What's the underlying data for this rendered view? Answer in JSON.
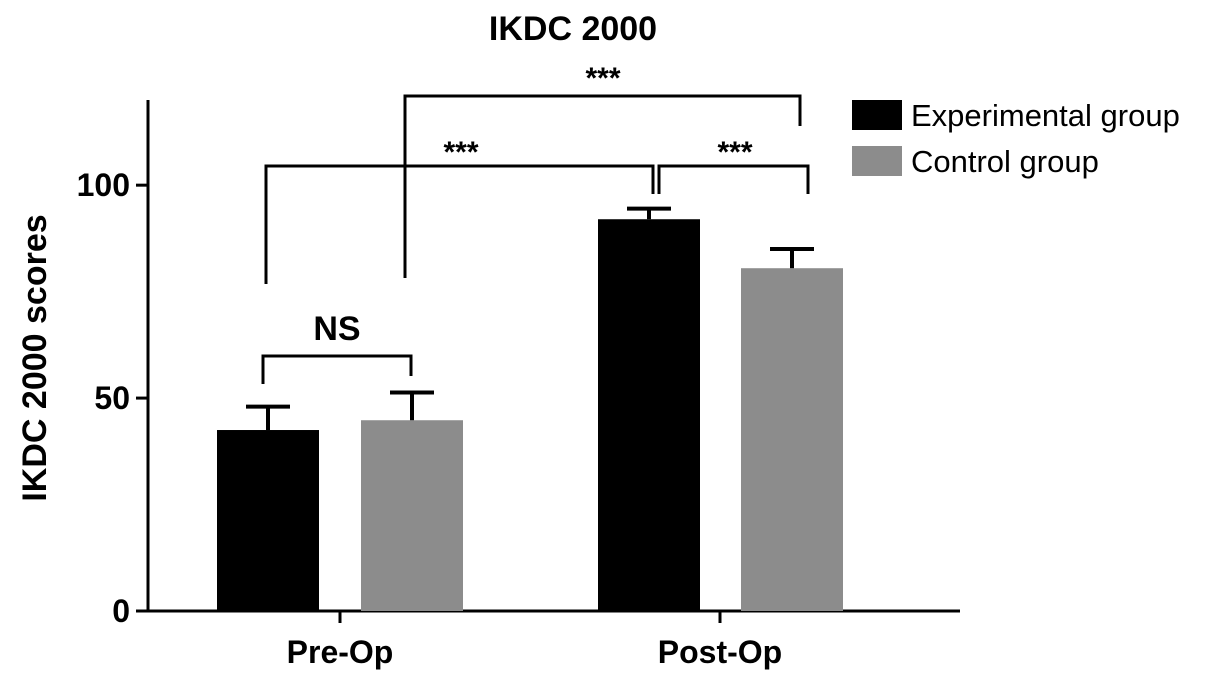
{
  "chart_data": {
    "type": "bar",
    "title": "IKDC 2000",
    "ylabel": "IKDC 2000 scores",
    "xlabel": "",
    "categories": [
      "Pre-Op",
      "Post-Op"
    ],
    "ylim": [
      0,
      120
    ],
    "yticks": [
      0,
      50,
      100
    ],
    "ytick_labels": [
      "0",
      "50",
      "100"
    ],
    "grid": false,
    "legend_position": "top-right",
    "series": [
      {
        "name": "Experimental group",
        "color": "#000000",
        "values": [
          42.5,
          92
        ],
        "errors": [
          5.5,
          2.5
        ]
      },
      {
        "name": "Control group",
        "color": "#8c8c8c",
        "values": [
          44.8,
          80.5
        ],
        "errors": [
          6.5,
          4.5
        ]
      }
    ],
    "annotations": [
      {
        "label": "NS",
        "between": [
          "Pre-Op Experimental group",
          "Pre-Op Control group"
        ]
      },
      {
        "label": "***",
        "between": [
          "Pre-Op Experimental group",
          "Post-Op Experimental group"
        ]
      },
      {
        "label": "***",
        "between": [
          "Post-Op Experimental group",
          "Post-Op Control group"
        ]
      },
      {
        "label": "***",
        "between": [
          "Pre-Op Control group",
          "Post-Op Control group"
        ]
      }
    ]
  }
}
